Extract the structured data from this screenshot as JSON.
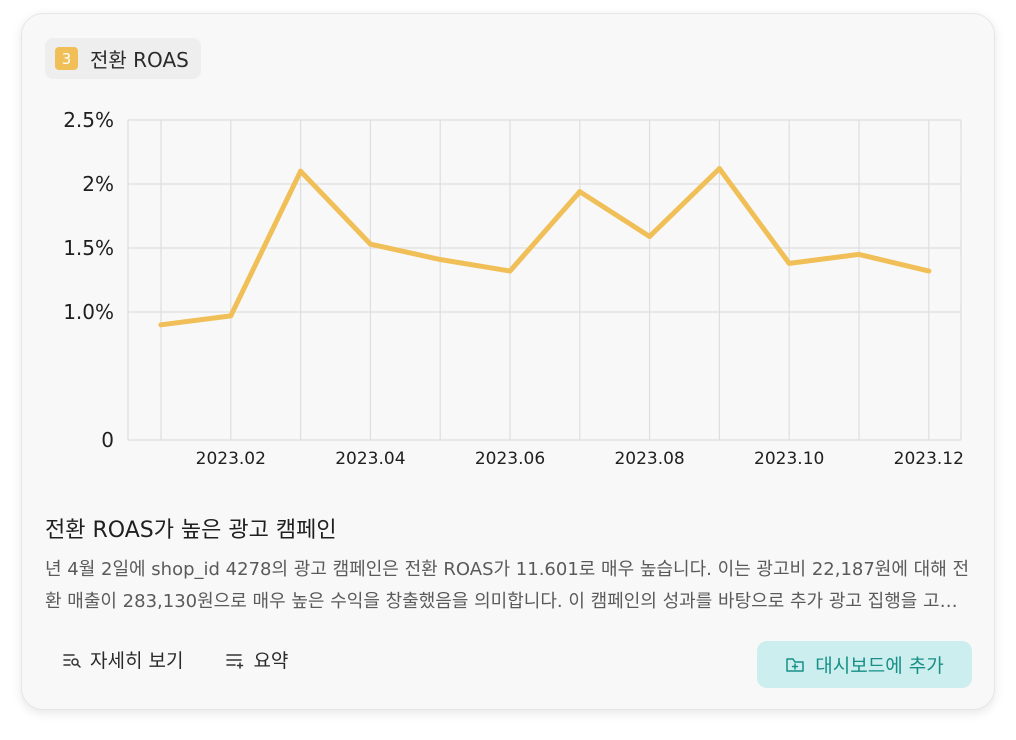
{
  "card": {
    "badge_number": "3",
    "badge_label": "전환 ROAS",
    "headline": "전환 ROAS가 높은 광고 캠페인",
    "description": "년 4월 2일에 shop_id 4278의 광고 캠페인은 전환 ROAS가 11.601로 매우 높습니다. 이는 광고비 22,187원에 대해 전환 매출이 283,130원으로 매우 높은 수익을 창출했음을 의미합니다. 이 캠페인의 성과를 바탕으로 추가 광고 집행을 고려해 보세요.",
    "actions": {
      "details_label": "자세히 보기",
      "summary_label": "요약",
      "add_dashboard_label": "대시보드에 추가"
    }
  },
  "colors": {
    "line": "#f0bf57",
    "badge": "#f0bf57",
    "add_button_bg": "#cdeeee",
    "add_button_text": "#168f87"
  },
  "icons": {
    "details": "list-search-icon",
    "summary": "list-sparkle-icon",
    "add_dashboard": "folder-plus-icon"
  },
  "chart_data": {
    "type": "line",
    "x": [
      "2023-01",
      "2023-02",
      "2023-03",
      "2023-04",
      "2023-05",
      "2023-06",
      "2023-07",
      "2023-08",
      "2023-09",
      "2023-10",
      "2023-11",
      "2023-12"
    ],
    "series": [
      {
        "values": [
          0.9,
          0.97,
          2.1,
          1.53,
          1.41,
          1.32,
          1.94,
          1.59,
          2.12,
          1.38,
          1.45,
          1.32
        ]
      }
    ],
    "yticks": [
      {
        "value": 0,
        "label": "0"
      },
      {
        "value": 1.0,
        "label": "1.0%"
      },
      {
        "value": 1.5,
        "label": "1.5%"
      },
      {
        "value": 2.0,
        "label": "2%"
      },
      {
        "value": 2.5,
        "label": "2.5%"
      }
    ],
    "xticks": [
      {
        "index": 1,
        "label": "2023.02"
      },
      {
        "index": 3,
        "label": "2023.04"
      },
      {
        "index": 5,
        "label": "2023.06"
      },
      {
        "index": 7,
        "label": "2023.08"
      },
      {
        "index": 9,
        "label": "2023.10"
      },
      {
        "index": 11,
        "label": "2023.12"
      }
    ],
    "ylim": [
      0,
      2.5
    ],
    "grid": true,
    "legend": "none"
  }
}
